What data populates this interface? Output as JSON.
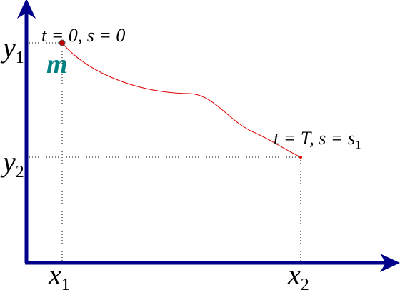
{
  "axes": {
    "y1": {
      "base": "y",
      "sub": "1"
    },
    "y2": {
      "base": "y",
      "sub": "2"
    },
    "x1": {
      "base": "x",
      "sub": "1"
    },
    "x2": {
      "base": "x",
      "sub": "2"
    }
  },
  "start": {
    "condition": "t = 0, s = 0",
    "mass": "m"
  },
  "end": {
    "condition": {
      "base": "t = T, s = s",
      "sub": "1"
    }
  }
}
